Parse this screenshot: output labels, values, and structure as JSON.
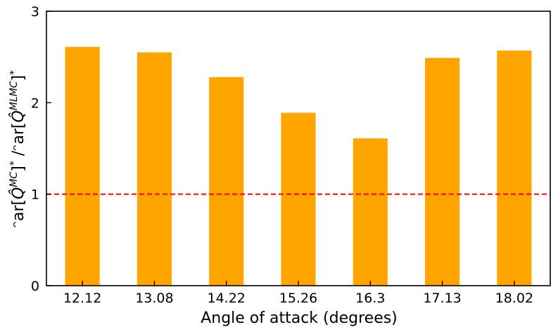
{
  "chart_data": {
    "type": "bar",
    "categories": [
      "12.12",
      "13.08",
      "14.22",
      "15.26",
      "16.3",
      "17.13",
      "18.02"
    ],
    "values": [
      2.61,
      2.55,
      2.28,
      1.89,
      1.61,
      2.49,
      2.57
    ],
    "xlabel": "Angle of attack (degrees)",
    "ylabel": {
      "part1": "ᵔar[",
      "q1": "Q̂",
      "sup1": "MC",
      "part2": "]",
      "star1": "*",
      "part3": " /ᵔar[",
      "q2": "Q̂",
      "sup2": "MLMC",
      "part4": "]",
      "star2": "*"
    },
    "ylim": [
      0,
      3
    ],
    "yticks": [
      "0",
      "1",
      "2",
      "3"
    ],
    "reference_line": {
      "y": 1,
      "color": "#ff0000",
      "style": "dashed"
    },
    "bar_color": "#ffa500",
    "grid": false,
    "legend": "none"
  }
}
